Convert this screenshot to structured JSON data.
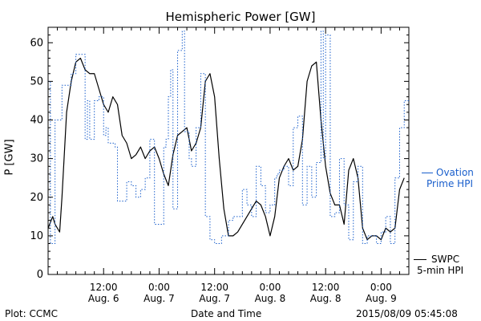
{
  "footer": {
    "plot_credit": "Plot: CCMC",
    "x_axis_title": "Date and Time",
    "timestamp": "2015/08/09 05:45:08"
  },
  "legend": {
    "ovation_line1": "Ovation",
    "ovation_line2": "Prime HPI",
    "swpc_line1": "SWPC",
    "swpc_line2": "5-min HPI"
  },
  "colors": {
    "ovation": "#1a5fcc",
    "swpc": "#000000",
    "axes": "#000000"
  },
  "chart_data": {
    "type": "line",
    "title": "Hemispheric Power [GW]",
    "ylabel": "P [GW]",
    "xlabel": "Date and Time",
    "ylim": [
      0,
      64
    ],
    "xlim_hours": [
      0,
      78
    ],
    "y_ticks": [
      0,
      10,
      20,
      30,
      40,
      50,
      60
    ],
    "x_ticks": [
      {
        "hour": 12,
        "time": "12:00",
        "date": "Aug. 6"
      },
      {
        "hour": 24,
        "time": "0:00",
        "date": "Aug. 7"
      },
      {
        "hour": 36,
        "time": "12:00",
        "date": "Aug. 7"
      },
      {
        "hour": 48,
        "time": "0:00",
        "date": "Aug. 8"
      },
      {
        "hour": 60,
        "time": "12:00",
        "date": "Aug. 8"
      },
      {
        "hour": 72,
        "time": "0:00",
        "date": "Aug. 9"
      }
    ],
    "series": [
      {
        "name": "SWPC 5-min HPI",
        "style": "solid",
        "x": [
          0,
          1,
          1.5,
          2,
          2.5,
          3,
          4,
          5,
          6,
          7,
          8,
          9,
          10,
          11,
          12,
          13,
          14,
          15,
          16,
          17,
          18,
          19,
          20,
          21,
          22,
          23,
          24,
          25,
          26,
          27,
          28,
          29,
          30,
          31,
          32,
          33,
          34,
          35,
          36,
          37,
          38,
          39,
          40,
          41,
          42,
          43,
          44,
          45,
          46,
          47,
          48,
          49,
          50,
          51,
          52,
          53,
          54,
          55,
          56,
          57,
          58,
          59,
          60,
          61,
          62,
          63,
          64,
          65,
          66,
          67,
          68,
          69,
          70,
          71,
          72,
          73,
          74,
          75,
          76,
          77
        ],
        "values": [
          12,
          15,
          13,
          12,
          11,
          20,
          42,
          50,
          55,
          56,
          53,
          52,
          52,
          48,
          44,
          42,
          46,
          44,
          36,
          34,
          30,
          31,
          33,
          30,
          32,
          33,
          30,
          26,
          23,
          31,
          36,
          37,
          38,
          32,
          34,
          38,
          50,
          52,
          46,
          30,
          17,
          10,
          10,
          11,
          13,
          15,
          17,
          19,
          18,
          15,
          10,
          15,
          25,
          28,
          30,
          27,
          28,
          35,
          50,
          54,
          55,
          40,
          28,
          21,
          18,
          18,
          13,
          27,
          30,
          25,
          12,
          9,
          10,
          10,
          9,
          12,
          11,
          12,
          22,
          25
        ]
      },
      {
        "name": "Ovation Prime HPI",
        "style": "dotted-step",
        "x": [
          0,
          0.5,
          1.3,
          1.5,
          3,
          5,
          6,
          7,
          8,
          8.5,
          9,
          10,
          11,
          12,
          12.5,
          13,
          13.5,
          14,
          14.5,
          15,
          16,
          17,
          18,
          18.5,
          19,
          20,
          21,
          22,
          23,
          24,
          25,
          25.5,
          26,
          26.5,
          27,
          28,
          29,
          29.5,
          30,
          30.5,
          31,
          32,
          33,
          34,
          35,
          36,
          37,
          37.5,
          38,
          39,
          40,
          41,
          42,
          43,
          44,
          45,
          46,
          47,
          48,
          49,
          49.5,
          50,
          51,
          52,
          53,
          54,
          55,
          56,
          57,
          58,
          59,
          59.5,
          60,
          61,
          62,
          63,
          64,
          65,
          66,
          67,
          68,
          69,
          70,
          71,
          72,
          73,
          74,
          75,
          76,
          77
        ],
        "values": [
          50,
          8,
          8,
          40,
          49,
          52,
          57,
          57,
          35,
          45,
          35,
          45,
          46,
          36,
          38,
          34,
          34,
          34,
          33,
          19,
          19,
          24,
          23,
          23,
          20,
          22,
          25,
          35,
          13,
          13,
          33,
          35,
          46,
          53,
          17,
          58,
          63,
          37,
          37,
          30,
          28,
          38,
          52,
          15,
          9,
          8,
          8,
          10,
          10,
          14,
          15,
          15,
          22,
          18,
          15,
          28,
          23,
          16,
          18,
          25,
          26,
          27,
          28,
          23,
          38,
          41,
          18,
          28,
          20,
          29,
          63,
          30,
          62,
          15,
          16,
          30,
          18,
          9,
          24,
          28,
          8,
          10,
          10,
          8,
          11,
          15,
          8,
          25,
          38,
          45
        ]
      }
    ]
  }
}
